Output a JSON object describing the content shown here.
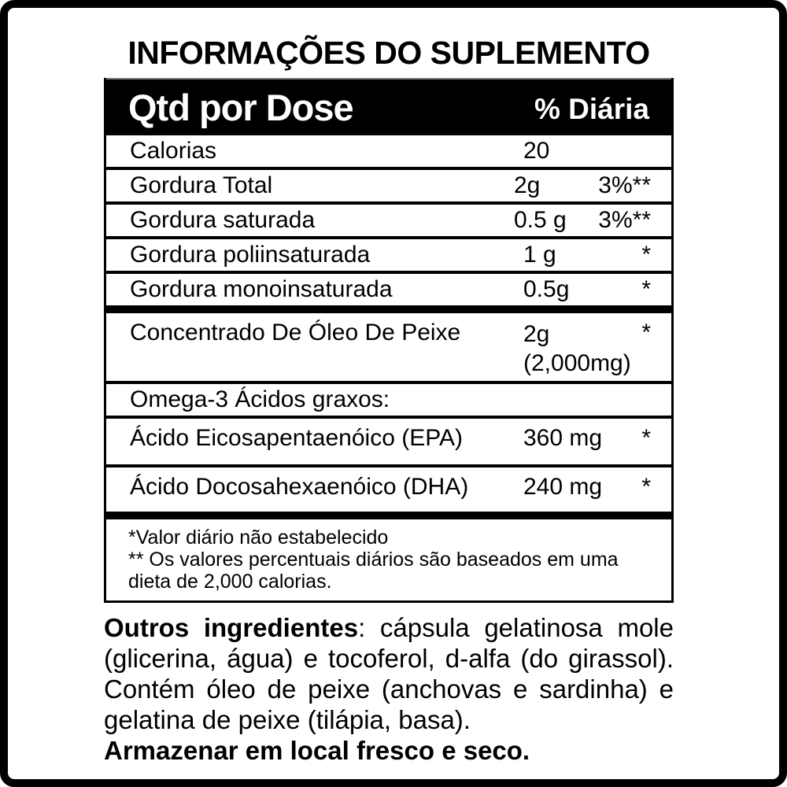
{
  "title": "INFORMAÇÕES DO SUPLEMENTO",
  "table": {
    "header": {
      "col1": "Qtd por Dose",
      "col2": "% Diária"
    },
    "rows": [
      {
        "label": "Calorias",
        "amount": "20",
        "daily": "",
        "type": "standard"
      },
      {
        "label": "Gordura Total",
        "amount": "2g",
        "daily": "3%**",
        "type": "standard"
      },
      {
        "label": "Gordura saturada",
        "amount": "0.5 g",
        "daily": "3%**",
        "type": "standard"
      },
      {
        "label": "Gordura poliinsaturada",
        "amount": "1 g",
        "daily": "*",
        "type": "standard"
      },
      {
        "label": "Gordura monoinsaturada",
        "amount": "0.5g",
        "daily": "*",
        "type": "standard",
        "thick_divider_after": true
      },
      {
        "label": "Concentrado De Óleo De Peixe",
        "amount": "2g",
        "amount_secondary": "(2,000mg)",
        "daily": "*",
        "type": "double"
      },
      {
        "label": "Omega-3 Ácidos graxos:",
        "amount": "",
        "daily": "",
        "type": "standard"
      },
      {
        "label": "Ácido Eicosapentaenóico (EPA)",
        "amount": "360 mg",
        "daily": "*",
        "type": "tall"
      },
      {
        "label": "Ácido Docosahexaenóico (DHA)",
        "amount": "240 mg",
        "daily": "*",
        "type": "tall",
        "thick_divider_after": true
      }
    ],
    "footnotes": [
      "*Valor diário não estabelecido",
      "** Os valores percentuais diários são baseados em uma dieta de 2,000 calorias."
    ]
  },
  "other_ingredients": {
    "lead": "Outros ingredientes",
    "text": ": cápsula gelatinosa mole (glicerina, água) e tocoferol, d-alfa (do girassol). Contém óleo de peixe (anchovas e sardinha) e gelatina de peixe (tilápia, basa)."
  },
  "storage": "Armazenar em local fresco e seco.",
  "colors": {
    "background": "#ffffff",
    "frame": "#000000",
    "header_bg": "#000000",
    "header_text": "#ffffff",
    "text": "#000000"
  }
}
